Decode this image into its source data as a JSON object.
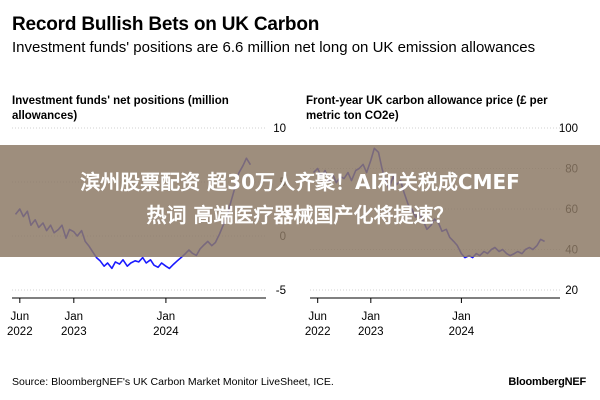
{
  "title": "Record Bullish Bets on UK Carbon",
  "subtitle": "Investment funds' positions are 6.6 million net long on UK emission allowances",
  "banner": {
    "line1": "滨州股票配资 超30万人齐聚！AI和关税成CMEF",
    "line2": "热词 高端医疗器械国产化将提速？"
  },
  "footer": {
    "source": "Source: BloombergNEF's UK Carbon Market Monitor LiveSheet, ICE.",
    "brand": "BloombergNEF"
  },
  "colors": {
    "line": "#1a1aff"
  },
  "chart_data": [
    {
      "type": "line",
      "title": "Investment funds' net positions (million allowances)",
      "ylim": [
        -5,
        10
      ],
      "yticks": [
        {
          "value": 10,
          "label": "10"
        },
        {
          "value": 5,
          "label": "5"
        },
        {
          "value": 0,
          "label": "0"
        },
        {
          "value": -5,
          "label": "-5"
        }
      ],
      "xlim": [
        "2022-05-01",
        "2024-12-31"
      ],
      "xticks": [
        {
          "date": "2022-06-01",
          "label": [
            "Jun",
            "2022"
          ]
        },
        {
          "date": "2023-01-01",
          "label": [
            "Jan",
            "2023"
          ]
        },
        {
          "date": "2024-01-01",
          "label": [
            "Jan",
            "2024"
          ]
        }
      ],
      "grid": true,
      "series": [
        {
          "x": [
            "2022-05-15",
            "2022-06-01",
            "2022-06-15",
            "2022-07-01",
            "2022-07-15",
            "2022-08-01",
            "2022-08-15",
            "2022-09-01",
            "2022-09-15",
            "2022-10-01",
            "2022-10-15",
            "2022-11-01",
            "2022-11-15",
            "2022-12-01",
            "2022-12-15",
            "2023-01-01",
            "2023-01-15",
            "2023-02-01",
            "2023-02-15",
            "2023-03-01",
            "2023-03-15",
            "2023-04-01",
            "2023-04-15",
            "2023-05-01",
            "2023-05-15",
            "2023-06-01",
            "2023-06-15",
            "2023-07-01",
            "2023-07-15",
            "2023-08-01",
            "2023-08-15",
            "2023-09-01",
            "2023-09-15",
            "2023-10-01",
            "2023-10-15",
            "2023-11-01",
            "2023-11-15",
            "2023-12-01",
            "2023-12-15",
            "2024-01-01",
            "2024-01-15",
            "2024-02-01",
            "2024-02-15",
            "2024-03-01",
            "2024-03-15",
            "2024-04-01",
            "2024-04-15",
            "2024-05-01",
            "2024-05-15",
            "2024-06-01",
            "2024-06-15",
            "2024-07-01",
            "2024-07-15",
            "2024-08-01",
            "2024-08-15",
            "2024-09-01",
            "2024-09-15",
            "2024-10-01",
            "2024-10-15",
            "2024-11-01",
            "2024-11-15",
            "2024-12-01"
          ],
          "y": [
            2.0,
            2.5,
            1.8,
            2.3,
            1.0,
            1.5,
            0.8,
            1.2,
            0.5,
            1.0,
            0.3,
            0.6,
            1.0,
            -0.2,
            0.6,
            0.4,
            0.0,
            0.5,
            -0.5,
            -0.9,
            -1.4,
            -2.0,
            -2.3,
            -2.8,
            -2.5,
            -3.0,
            -2.4,
            -2.6,
            -2.2,
            -2.8,
            -2.5,
            -2.3,
            -2.4,
            -2.0,
            -2.5,
            -2.2,
            -2.7,
            -2.9,
            -2.5,
            -2.8,
            -3.0,
            -2.6,
            -2.3,
            -2.0,
            -1.7,
            -1.3,
            -1.6,
            -1.8,
            -1.2,
            -0.8,
            -0.5,
            -0.9,
            -0.6,
            0.2,
            1.0,
            2.0,
            3.2,
            4.5,
            5.8,
            6.5,
            7.2,
            6.6
          ]
        }
      ]
    },
    {
      "type": "line",
      "title": "Front-year UK carbon allowance price (£ per metric ton CO2e)",
      "ylim": [
        20,
        100
      ],
      "yticks": [
        {
          "value": 100,
          "label": "100"
        },
        {
          "value": 80,
          "label": "80"
        },
        {
          "value": 60,
          "label": "60"
        },
        {
          "value": 40,
          "label": "40"
        },
        {
          "value": 20,
          "label": "20"
        }
      ],
      "xlim": [
        "2022-05-01",
        "2024-12-31"
      ],
      "xticks": [
        {
          "date": "2022-06-01",
          "label": [
            "Jun",
            "2022"
          ]
        },
        {
          "date": "2023-01-01",
          "label": [
            "Jan",
            "2023"
          ]
        },
        {
          "date": "2024-01-01",
          "label": [
            "Jan",
            "2024"
          ]
        }
      ],
      "grid": true,
      "series": [
        {
          "x": [
            "2022-05-15",
            "2022-06-01",
            "2022-06-15",
            "2022-07-01",
            "2022-07-15",
            "2022-08-01",
            "2022-08-15",
            "2022-09-01",
            "2022-09-15",
            "2022-10-01",
            "2022-10-15",
            "2022-11-01",
            "2022-11-15",
            "2022-12-01",
            "2022-12-15",
            "2023-01-01",
            "2023-01-15",
            "2023-02-01",
            "2023-02-15",
            "2023-03-01",
            "2023-03-15",
            "2023-04-01",
            "2023-04-15",
            "2023-05-01",
            "2023-05-15",
            "2023-06-01",
            "2023-06-15",
            "2023-07-01",
            "2023-07-15",
            "2023-08-01",
            "2023-08-15",
            "2023-09-01",
            "2023-09-15",
            "2023-10-01",
            "2023-10-15",
            "2023-11-01",
            "2023-11-15",
            "2023-12-01",
            "2023-12-15",
            "2024-01-01",
            "2024-01-15",
            "2024-02-01",
            "2024-02-15",
            "2024-03-01",
            "2024-03-15",
            "2024-04-01",
            "2024-04-15",
            "2024-05-01",
            "2024-05-15",
            "2024-06-01",
            "2024-06-15",
            "2024-07-01",
            "2024-07-15",
            "2024-08-01",
            "2024-08-15",
            "2024-09-01",
            "2024-09-15",
            "2024-10-01",
            "2024-10-15",
            "2024-11-01",
            "2024-11-15",
            "2024-12-01"
          ],
          "y": [
            78,
            80,
            76,
            79,
            74,
            77,
            73,
            76,
            75,
            78,
            74,
            79,
            80,
            82,
            78,
            84,
            90,
            88,
            80,
            74,
            70,
            76,
            72,
            74,
            68,
            62,
            60,
            56,
            58,
            54,
            50,
            52,
            55,
            53,
            49,
            50,
            46,
            44,
            42,
            38,
            36,
            37,
            36,
            38,
            37,
            39,
            38,
            40,
            41,
            39,
            40,
            38,
            37,
            38,
            39,
            38,
            40,
            41,
            40,
            42,
            45,
            44
          ]
        }
      ]
    }
  ]
}
